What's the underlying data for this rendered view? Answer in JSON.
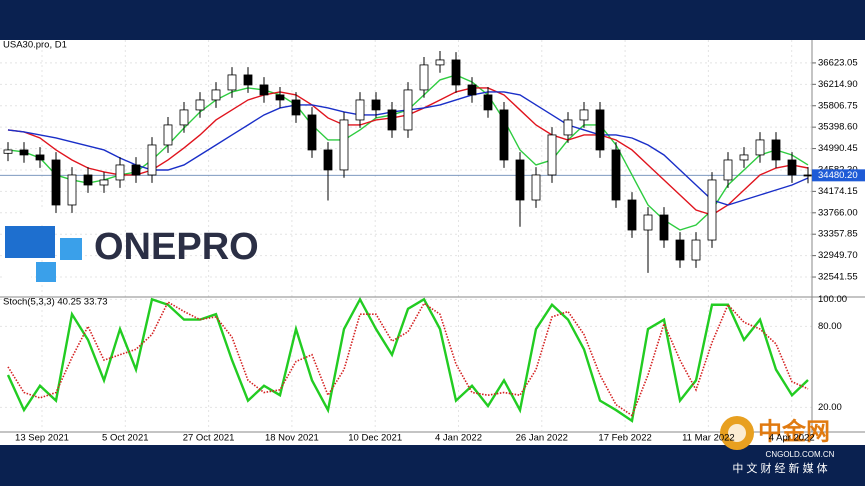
{
  "chart_data": {
    "type": "candlestick",
    "title": "USA30.pro, D1",
    "open": [
      34900,
      34964,
      34869,
      34773,
      33915,
      34487,
      34296,
      34392,
      34678,
      34487,
      35059,
      35441,
      35727,
      35917,
      36108,
      36394,
      36203,
      36013,
      35917,
      35631,
      34964,
      34583,
      35536,
      35917,
      35727,
      35345,
      36108,
      36585,
      36680,
      36203,
      36013,
      35727,
      34773,
      34010,
      34487,
      35250,
      35536,
      35727,
      34964,
      34010,
      33438,
      33724,
      33247,
      32866,
      33247,
      34392,
      34773,
      34869,
      35155,
      34773,
      34487
    ],
    "high": [
      35114,
      35114,
      35019,
      34923,
      34637,
      34637,
      34542,
      34828,
      34828,
      35209,
      35591,
      35877,
      36067,
      36258,
      36544,
      36544,
      36353,
      36163,
      36067,
      35781,
      35114,
      35686,
      36067,
      36067,
      35877,
      36258,
      36735,
      36850,
      36830,
      36353,
      36163,
      35877,
      34923,
      34637,
      35400,
      35686,
      35877,
      35877,
      35114,
      34160,
      33874,
      33874,
      33397,
      33397,
      34542,
      34923,
      35019,
      35305,
      35305,
      34923,
      34637
    ],
    "low": [
      34750,
      34719,
      34623,
      33765,
      33765,
      34146,
      34146,
      34242,
      34337,
      34337,
      34909,
      35291,
      35577,
      35767,
      35958,
      36053,
      35863,
      35767,
      35481,
      34814,
      34000,
      34433,
      35386,
      35577,
      35195,
      35195,
      35958,
      36435,
      36053,
      35863,
      35577,
      34623,
      33500,
      33860,
      34337,
      35100,
      35386,
      34814,
      33860,
      33288,
      32620,
      33097,
      32716,
      32716,
      33097,
      34242,
      34623,
      34719,
      34623,
      34337,
      34330
    ],
    "close": [
      34964,
      34869,
      34773,
      33915,
      34487,
      34296,
      34392,
      34678,
      34487,
      35059,
      35441,
      35727,
      35917,
      36108,
      36394,
      36203,
      36013,
      35917,
      35631,
      34964,
      34583,
      35536,
      35917,
      35727,
      35345,
      36108,
      36585,
      36680,
      36203,
      36013,
      35727,
      34773,
      34010,
      34487,
      35250,
      35536,
      35727,
      34964,
      34010,
      33438,
      33724,
      33247,
      32866,
      33247,
      34392,
      34773,
      34869,
      35155,
      34773,
      34487,
      34480
    ],
    "moving_averages": [
      {
        "color": "#2ecc40",
        "values": [
          34964,
          34926,
          34811,
          34487,
          34392,
          34334,
          34392,
          34487,
          34544,
          34773,
          35059,
          35383,
          35688,
          35917,
          36070,
          36146,
          36108,
          36013,
          35822,
          35440,
          35154,
          35154,
          35345,
          35574,
          35631,
          35727,
          36013,
          36299,
          36394,
          36260,
          36013,
          35536,
          34964,
          34678,
          34773,
          35154,
          35440,
          35440,
          35059,
          34487,
          33915,
          33629,
          33438,
          33533,
          33819,
          34296,
          34582,
          34868,
          34964,
          34868,
          34678
        ]
      },
      {
        "color": "#e0141e",
        "values": [
          35345,
          35307,
          35192,
          34964,
          34773,
          34620,
          34544,
          34487,
          34487,
          34582,
          34773,
          35002,
          35250,
          35536,
          35727,
          35917,
          36013,
          36070,
          36013,
          35822,
          35574,
          35440,
          35440,
          35536,
          35574,
          35631,
          35765,
          35917,
          36070,
          36146,
          36146,
          36013,
          35727,
          35440,
          35250,
          35154,
          35250,
          35250,
          35154,
          34964,
          34678,
          34392,
          34105,
          33819,
          33724,
          33915,
          34201,
          34487,
          34620,
          34678,
          34620
        ]
      },
      {
        "color": "#1a2fc8",
        "values": [
          35345,
          35307,
          35250,
          35192,
          35116,
          35040,
          34964,
          34811,
          34678,
          34582,
          34582,
          34678,
          34868,
          35059,
          35250,
          35440,
          35631,
          35765,
          35822,
          35822,
          35765,
          35688,
          35631,
          35631,
          35688,
          35727,
          35765,
          35822,
          35917,
          36013,
          36070,
          36070,
          36013,
          35822,
          35631,
          35440,
          35345,
          35250,
          35250,
          35192,
          35059,
          34868,
          34582,
          34296,
          34010,
          33915,
          34010,
          34105,
          34201,
          34296,
          34430
        ]
      }
    ],
    "ylim": [
      32180,
      37060
    ],
    "yticks": [
      {
        "value": 36623.05,
        "label": "36623.05"
      },
      {
        "value": 36214.9,
        "label": "36214.90"
      },
      {
        "value": 35806.75,
        "label": "35806.75"
      },
      {
        "value": 35398.6,
        "label": "35398.60"
      },
      {
        "value": 34990.45,
        "label": "34990.45"
      },
      {
        "value": 34582.3,
        "label": "34582.30"
      },
      {
        "value": 34174.15,
        "label": "34174.15"
      },
      {
        "value": 33766,
        "label": "33766.00"
      },
      {
        "value": 33357.85,
        "label": "33357.85"
      },
      {
        "value": 32949.7,
        "label": "32949.70"
      },
      {
        "value": 32541.55,
        "label": "32541.55"
      }
    ],
    "last_price": {
      "value": 34480.2,
      "label": "34480.20"
    },
    "x_labels": [
      "13 Sep 2021",
      "5 Oct 2021",
      "27 Oct 2021",
      "18 Nov 2021",
      "10 Dec 2021",
      "4 Jan 2022",
      "26 Jan 2022",
      "17 Feb 2022",
      "11 Mar 2022",
      "4 Apr 2022"
    ],
    "indicator": {
      "type": "line",
      "title": "Stoch(5,3,3) 40.25 33.73",
      "ylim": [
        2.5,
        101
      ],
      "yticks": [
        {
          "value": 100,
          "label": "100.00"
        },
        {
          "value": 80,
          "label": "80.00"
        },
        {
          "value": 20,
          "label": "20.00"
        }
      ],
      "series": [
        {
          "color": "#22cc22",
          "values": [
            44,
            18,
            36,
            25,
            89,
            70,
            40,
            78,
            48,
            100,
            96,
            85,
            85,
            89,
            55,
            25,
            36,
            29,
            78,
            40,
            18,
            78,
            100,
            78,
            59,
            93,
            100,
            78,
            25,
            36,
            21,
            40,
            18,
            78,
            96,
            85,
            63,
            25,
            18,
            10,
            78,
            85,
            25,
            40,
            96,
            96,
            70,
            85,
            48,
            29,
            40.25
          ]
        },
        {
          "color": "#d42020",
          "dashed": true,
          "values": [
            50,
            31,
            27,
            31,
            57,
            80,
            55,
            59,
            63,
            74,
            98,
            91,
            85,
            87,
            72,
            40,
            31,
            33,
            54,
            59,
            29,
            48,
            89,
            89,
            69,
            76,
            97,
            89,
            52,
            31,
            29,
            31,
            29,
            48,
            87,
            91,
            74,
            44,
            22,
            14,
            44,
            82,
            55,
            33,
            68,
            96,
            83,
            78,
            67,
            39,
            33.73
          ]
        }
      ]
    }
  },
  "logo": "ONEPRO",
  "watermark": {
    "brand": "中金网",
    "site": "CNGOLD.COM.CN",
    "tagline": "中 文 财 经 新 媒 体"
  }
}
